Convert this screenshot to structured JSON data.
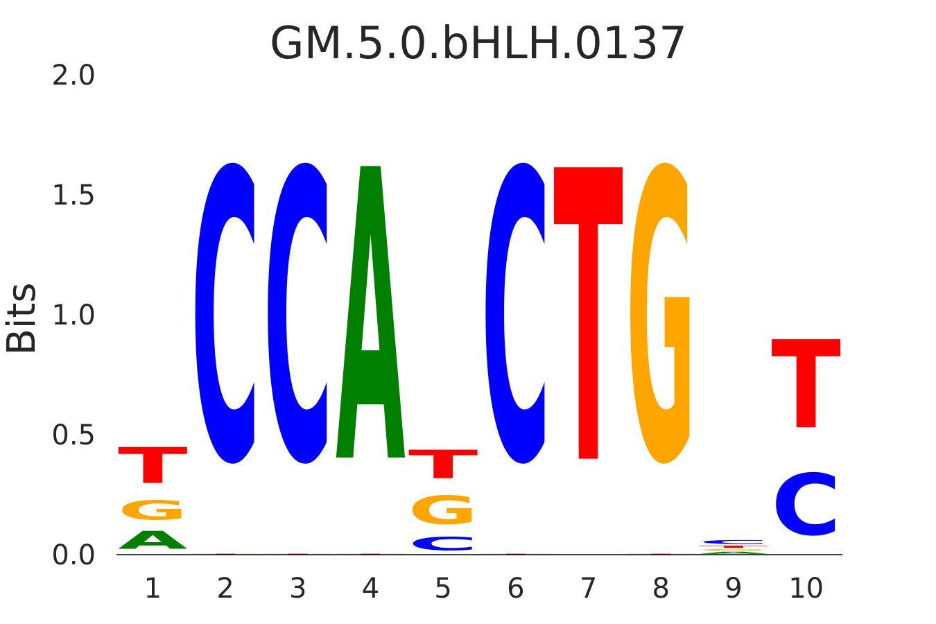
{
  "chart_data": {
    "type": "sequence-logo",
    "title": "GM.5.0.bHLH.0137",
    "ylabel": "Bits",
    "xlabel": "",
    "ylim": [
      0,
      2.0
    ],
    "yticks": [
      "0.0",
      "0.5",
      "1.0",
      "1.5",
      "2.0"
    ],
    "positions": [
      "1",
      "2",
      "3",
      "4",
      "5",
      "6",
      "7",
      "8",
      "9",
      "10"
    ],
    "colors": {
      "A": "#008000",
      "C": "#0000ff",
      "G": "#ffa500",
      "T": "#ff0000"
    },
    "stacks": [
      [
        {
          "base": "A",
          "height": 0.12
        },
        {
          "base": "G",
          "height": 0.13
        },
        {
          "base": "T",
          "height": 0.24
        }
      ],
      [
        {
          "base": "T",
          "height": 0.005
        },
        {
          "base": "C",
          "height": 1.94
        }
      ],
      [
        {
          "base": "T",
          "height": 0.005
        },
        {
          "base": "C",
          "height": 1.94
        }
      ],
      [
        {
          "base": "T",
          "height": 0.005
        },
        {
          "base": "A",
          "height": 1.95
        }
      ],
      [
        {
          "base": "C",
          "height": 0.09
        },
        {
          "base": "G",
          "height": 0.19
        },
        {
          "base": "T",
          "height": 0.19
        }
      ],
      [
        {
          "base": "T",
          "height": 0.005
        },
        {
          "base": "C",
          "height": 1.94
        }
      ],
      [
        {
          "base": "T",
          "height": 1.95
        }
      ],
      [
        {
          "base": "T",
          "height": 0.005
        },
        {
          "base": "G",
          "height": 1.94
        }
      ],
      [
        {
          "base": "A",
          "height": 0.015
        },
        {
          "base": "G",
          "height": 0.01
        },
        {
          "base": "T",
          "height": 0.015
        },
        {
          "base": "C",
          "height": 0.025
        }
      ],
      [
        {
          "base": "C",
          "height": 0.41
        },
        {
          "base": "T",
          "height": 0.59
        }
      ]
    ]
  }
}
